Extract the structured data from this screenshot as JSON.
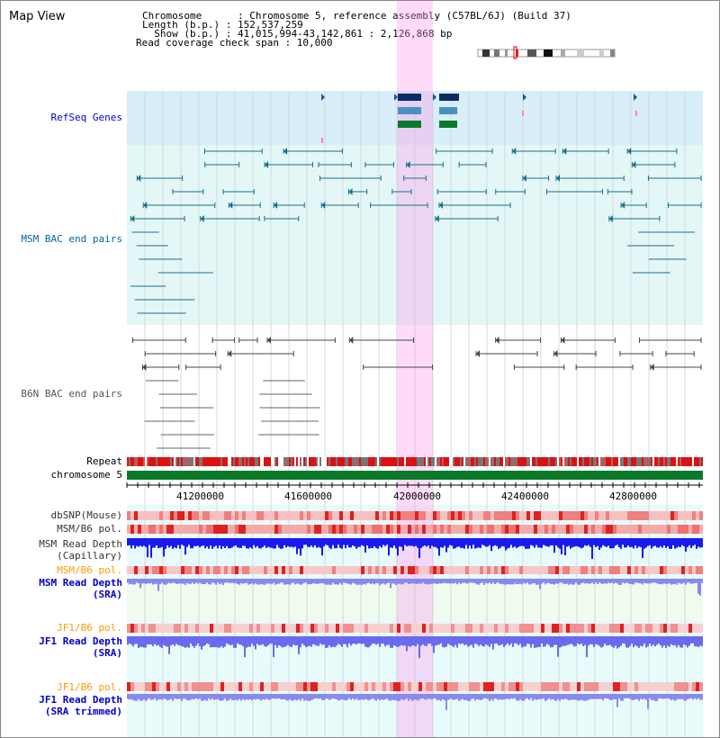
{
  "header": {
    "title": "Map View",
    "info_lines": [
      "Chromosome      : Chromosome 5, reference assembly (C57BL/6J) (Build 37)",
      "Length (b.p.) : 152,537,259",
      "  Show (b.p.) : 41,015,994-43,142,861 : 2,126,868 bp",
      "Read coverage check span : 10,000"
    ]
  },
  "tracks": {
    "refseq": "RefSeq Genes",
    "msm_bac": "MSM BAC end pairs",
    "b6n_bac": "B6N BAC end pairs",
    "repeat": "Repeat",
    "chromosome": "chromosome 5",
    "dbsnp": "dbSNP(Mouse)",
    "msm_b6_pol": "MSM/B6 pol.",
    "msm_read_depth_cap_1": "MSM Read Depth",
    "msm_read_depth_cap_2": "(Capillary)",
    "msm_b6_pol_sra": "MSM/B6 pol.",
    "msm_read_depth_sra_1": "MSM Read Depth",
    "msm_read_depth_sra_2": "(SRA)",
    "jf1_b6_pol": "JF1/B6 pol.",
    "jf1_read_depth_1": "JF1 Read Depth",
    "jf1_read_depth_2": "(SRA)",
    "jf1_b6_pol_trim": "JF1/B6 pol.",
    "jf1_read_depth_trim_1": "JF1 Read Depth",
    "jf1_read_depth_trim_2": "(SRA trimmed)"
  },
  "axis": {
    "ticks": [
      "41200000",
      "41600000",
      "42000000",
      "42400000",
      "42800000"
    ]
  },
  "colors": {
    "refseq_label": "#0000cc",
    "msm_label": "#006699",
    "b6n_label": "#555555",
    "pol_orange": "#ff9900",
    "depth_blue": "#0000cc",
    "highlight": "#ff99ee"
  }
}
